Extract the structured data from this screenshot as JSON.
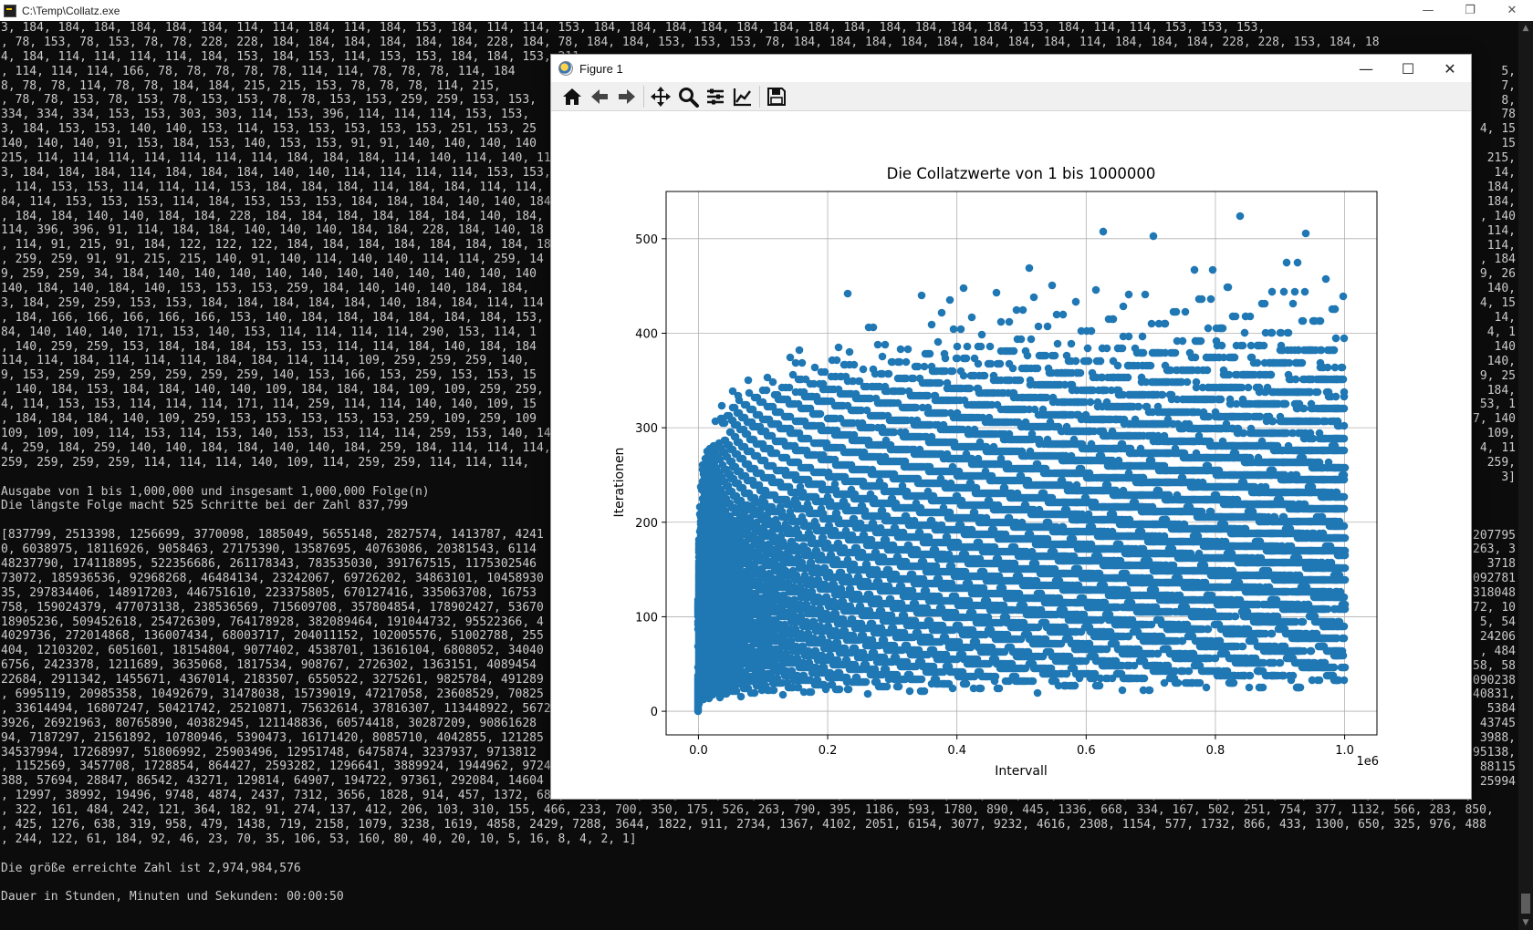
{
  "console": {
    "title": "C:\\Temp\\Collatz.exe",
    "controls": {
      "minimize": "—",
      "maximize": "❐",
      "close": "✕"
    },
    "lines": [
      "3, 184, 184, 184, 184, 184, 184, 114, 114, 184, 114, 184, 153, 184, 114, 114, 153, 184, 184, 184, 184, 184, 184, 184, 184, 184, 184, 184, 184, 153, 184, 114, 114, 153, 153, 153,",
      ", 78, 153, 78, 153, 78, 78, 228, 228, 184, 184, 184, 184, 184, 184, 228, 184, 78, 184, 184, 153, 153, 153, 78, 184, 184, 184, 184, 184, 184, 184, 184, 114, 184, 184, 184, 228, 228, 153, 184, 18",
      "4, 184, 114, 114, 114, 114, 184, 153, 184, 153, 114, 153, 153, 184, 184, 153, 211",
      ", 114, 114, 114, 166, 78, 78, 78, 78, 78, 114, 114, 78, 78, 78, 114, 184",
      "8, 78, 78, 114, 78, 78, 184, 184, 215, 215, 153, 78, 78, 78, 114, 215,",
      ", 78, 78, 153, 78, 153, 78, 153, 153, 78, 78, 153, 153, 259, 259, 153, 153,",
      "334, 334, 334, 153, 153, 303, 303, 114, 153, 396, 114, 114, 114, 153, 153,",
      "3, 184, 153, 153, 140, 140, 153, 114, 153, 153, 153, 153, 153, 251, 153, 25",
      "140, 140, 140, 91, 153, 184, 153, 140, 153, 153, 91, 91, 140, 140, 140, 140",
      "215, 114, 114, 114, 114, 114, 114, 114, 184, 184, 184, 114, 140, 114, 140, 114,",
      "3, 184, 184, 184, 114, 184, 184, 184, 140, 140, 114, 114, 114, 114, 153, 153,",
      ", 114, 153, 153, 114, 114, 114, 153, 184, 184, 184, 114, 184, 184, 114, 114,",
      "84, 114, 153, 153, 153, 114, 184, 153, 153, 153, 184, 184, 184, 140, 140, 184, 18",
      ", 184, 184, 140, 140, 184, 184, 228, 184, 184, 184, 184, 184, 184, 140, 184, 18",
      "114, 396, 396, 91, 114, 184, 184, 140, 140, 140, 184, 184, 228, 184, 140, 18",
      ", 114, 91, 215, 91, 184, 122, 122, 122, 184, 184, 184, 184, 184, 184, 184, 18",
      ", 259, 259, 91, 91, 215, 215, 140, 91, 140, 114, 140, 140, 114, 114, 259, 14",
      "9, 259, 259, 34, 184, 140, 140, 140, 140, 140, 140, 140, 140, 140, 140, 140",
      "140, 184, 140, 184, 140, 153, 153, 153, 259, 184, 140, 140, 140, 184, 184,",
      "3, 184, 259, 259, 153, 153, 184, 184, 184, 184, 184, 140, 184, 184, 114, 114",
      ", 184, 166, 166, 166, 166, 166, 153, 140, 184, 184, 184, 184, 184, 184, 153,",
      "84, 140, 140, 140, 171, 153, 140, 153, 114, 114, 114, 114, 290, 153, 114, 1",
      ", 140, 259, 259, 153, 184, 184, 184, 153, 153, 114, 114, 184, 140, 184, 184",
      "114, 114, 184, 114, 114, 114, 184, 184, 114, 114, 109, 259, 259, 259, 140,",
      "9, 153, 259, 259, 259, 259, 259, 259, 140, 153, 166, 153, 259, 153, 153, 15",
      ", 140, 184, 153, 184, 184, 140, 140, 109, 184, 184, 184, 109, 109, 259, 259,",
      "4, 114, 153, 153, 114, 114, 114, 171, 114, 259, 114, 114, 140, 140, 109, 15",
      ", 184, 184, 184, 140, 109, 259, 153, 153, 153, 153, 153, 259, 109, 259, 109",
      "109, 109, 109, 114, 153, 114, 153, 140, 153, 153, 114, 114, 259, 153, 140, 14",
      "4, 259, 184, 259, 140, 140, 184, 184, 140, 140, 184, 259, 184, 114, 114, 114,",
      "259, 259, 259, 259, 114, 114, 114, 140, 109, 114, 259, 259, 114, 114, 114,",
      "",
      "Ausgabe von 1 bis 1,000,000 und insgesamt 1,000,000 Folge(n)",
      "Die längste Folge macht 525 Schritte bei der Zahl 837,799",
      "",
      "[837799, 2513398, 1256699, 3770098, 1885049, 5655148, 2827574, 1413787, 4241",
      "0, 6038975, 18116926, 9058463, 27175390, 13587695, 40763086, 20381543, 6114",
      "48237790, 174118895, 522356686, 261178343, 783535030, 391767515, 1175302546",
      "73072, 185936536, 92968268, 46484134, 23242067, 69726202, 34863101, 10458930",
      "35, 297834406, 148917203, 446751610, 223375805, 670127416, 335063708, 16753",
      "758, 159024379, 477073138, 238536569, 715609708, 357804854, 178902427, 53670",
      "18905236, 509452618, 254726309, 764178928, 382089464, 191044732, 95522366, 4",
      "4029736, 272014868, 136007434, 68003717, 204011152, 102005576, 51002788, 255",
      "404, 12103202, 6051601, 18154804, 9077402, 4538701, 13616104, 6808052, 34040",
      "6756, 2423378, 1211689, 3635068, 1817534, 908767, 2726302, 1363151, 4089454",
      "22684, 2911342, 1455671, 4367014, 2183507, 6550522, 3275261, 9825784, 491289",
      ", 6995119, 20985358, 10492679, 31478038, 15739019, 47217058, 23608529, 70825",
      ", 33614494, 16807247, 50421742, 25210871, 75632614, 37816307, 113448922, 5672",
      "3926, 26921963, 80765890, 40382945, 121148836, 60574418, 30287209, 90861628",
      "94, 7187297, 21561892, 10780946, 5390473, 16171420, 8085710, 4042855, 121285",
      "34537994, 17268997, 51806992, 25903496, 12951748, 6475874, 3237937, 9713812",
      ", 1152569, 3457708, 1728854, 864427, 2593282, 1296641, 3889924, 1944962, 9724",
      "388, 57694, 28847, 86542, 43271, 129814, 64907, 194722, 97361, 292084, 14604",
      ", 12997, 38992, 19496, 9748, 4874, 2437, 7312, 3656, 1828, 914, 457, 1372, 686, 343, 1030, 515, 1546, 773, 2320, 1160, 580, 290, 145, 436, 218, 109, 328, 164, 82, 41, 124, 62, 31, 94, 47, 142, 71, 214, 107,",
      ", 322, 161, 484, 242, 121, 364, 182, 91, 274, 137, 412, 206, 103, 310, 155, 466, 233, 700, 350, 175, 526, 263, 790, 395, 1186, 593, 1780, 890, 445, 1336, 668, 334, 167, 502, 251, 754, 377, 1132, 566, 283, 850,",
      ", 425, 1276, 638, 319, 958, 479, 1438, 719, 2158, 1079, 3238, 1619, 4858, 2429, 7288, 3644, 1822, 911, 2734, 1367, 4102, 2051, 6154, 3077, 9232, 4616, 2308, 1154, 577, 1732, 866, 433, 1300, 650, 325, 976, 488",
      ", 244, 122, 61, 184, 92, 46, 23, 70, 35, 106, 53, 160, 80, 40, 20, 10, 5, 16, 8, 4, 2, 1]",
      "",
      "Die größe erreichte Zahl ist 2,974,984,576",
      "",
      "Dauer in Stunden, Minuten und Sekunden: 00:00:50"
    ],
    "right_fragments": [
      {
        "row": 3,
        "text": "5,"
      },
      {
        "row": 4,
        "text": "7,"
      },
      {
        "row": 5,
        "text": "8,"
      },
      {
        "row": 6,
        "text": "78"
      },
      {
        "row": 7,
        "text": "4, 15"
      },
      {
        "row": 8,
        "text": "15"
      },
      {
        "row": 9,
        "text": "215,"
      },
      {
        "row": 10,
        "text": "14,"
      },
      {
        "row": 11,
        "text": "184,"
      },
      {
        "row": 12,
        "text": "184,"
      },
      {
        "row": 13,
        "text": ", 140"
      },
      {
        "row": 14,
        "text": "114,"
      },
      {
        "row": 15,
        "text": "114,"
      },
      {
        "row": 16,
        "text": ", 184"
      },
      {
        "row": 17,
        "text": "9, 26"
      },
      {
        "row": 18,
        "text": "140,"
      },
      {
        "row": 19,
        "text": "4, 15"
      },
      {
        "row": 20,
        "text": "14,"
      },
      {
        "row": 21,
        "text": "4, 1"
      },
      {
        "row": 22,
        "text": "140"
      },
      {
        "row": 23,
        "text": "140,"
      },
      {
        "row": 24,
        "text": "9, 25"
      },
      {
        "row": 25,
        "text": "184,"
      },
      {
        "row": 26,
        "text": "53, 1"
      },
      {
        "row": 27,
        "text": "7, 140"
      },
      {
        "row": 28,
        "text": "109,"
      },
      {
        "row": 29,
        "text": "4, 11"
      },
      {
        "row": 30,
        "text": "259,"
      },
      {
        "row": 31,
        "text": "3]"
      },
      {
        "row": 35,
        "text": "207795"
      },
      {
        "row": 36,
        "text": "263, 3"
      },
      {
        "row": 37,
        "text": "3718"
      },
      {
        "row": 38,
        "text": "092781"
      },
      {
        "row": 39,
        "text": "318048"
      },
      {
        "row": 40,
        "text": "72, 10"
      },
      {
        "row": 41,
        "text": "5, 54"
      },
      {
        "row": 42,
        "text": "24206"
      },
      {
        "row": 43,
        "text": ", 484"
      },
      {
        "row": 44,
        "text": "58, 58"
      },
      {
        "row": 45,
        "text": "090238"
      },
      {
        "row": 46,
        "text": "40831,"
      },
      {
        "row": 47,
        "text": "5384"
      },
      {
        "row": 48,
        "text": "43745"
      },
      {
        "row": 49,
        "text": "3988,"
      },
      {
        "row": 50,
        "text": "95138,"
      },
      {
        "row": 51,
        "text": "88115"
      },
      {
        "row": 52,
        "text": "25994"
      }
    ]
  },
  "figure": {
    "title": "Figure 1",
    "controls": {
      "minimize": "—",
      "maximize": "☐",
      "close": "✕"
    },
    "toolbar": [
      {
        "name": "home-icon"
      },
      {
        "name": "back-arrow-icon"
      },
      {
        "name": "forward-arrow-icon"
      },
      {
        "name": "pan-icon"
      },
      {
        "name": "zoom-icon"
      },
      {
        "name": "configure-subplots-icon"
      },
      {
        "name": "edit-axis-icon"
      },
      {
        "name": "save-icon"
      }
    ]
  },
  "chart_data": {
    "type": "scatter",
    "title": "Die Collatzwerte von 1 bis 1000000",
    "xlabel": "Intervall",
    "ylabel": "Iterationen",
    "x_offset_text": "1e6",
    "xlim": [
      -0.05,
      1.05
    ],
    "ylim": [
      -25,
      550
    ],
    "xticks": [
      0.0,
      0.2,
      0.4,
      0.6,
      0.8,
      1.0
    ],
    "xtick_labels": [
      "0.0",
      "0.2",
      "0.4",
      "0.6",
      "0.8",
      "1.0"
    ],
    "yticks": [
      0,
      100,
      200,
      300,
      400,
      500
    ],
    "ytick_labels": [
      "0",
      "100",
      "200",
      "300",
      "400",
      "500"
    ],
    "grid": true,
    "color": "#1f77b4",
    "series": [
      {
        "values_note": "Collatz stopping times for n = 1 .. 1000000 (x in units of 1e6)",
        "highlight_points": [
          {
            "x": 0.837799,
            "y": 525
          },
          {
            "x": 0.626331,
            "y": 508
          },
          {
            "x": 0.704623,
            "y": 504
          },
          {
            "x": 0.939497,
            "y": 507
          },
          {
            "x": 0.910107,
            "y": 476
          },
          {
            "x": 0.511935,
            "y": 469
          },
          {
            "x": 0.767903,
            "y": 467
          },
          {
            "x": 0.796095,
            "y": 467
          },
          {
            "x": 0.970599,
            "y": 458
          },
          {
            "x": 0.230631,
            "y": 442
          },
          {
            "x": 0.410011,
            "y": 448
          },
          {
            "x": 0.546681,
            "y": 451
          },
          {
            "x": 0.820022,
            "y": 449
          },
          {
            "x": 1.0,
            "y": 440
          }
        ]
      }
    ]
  }
}
